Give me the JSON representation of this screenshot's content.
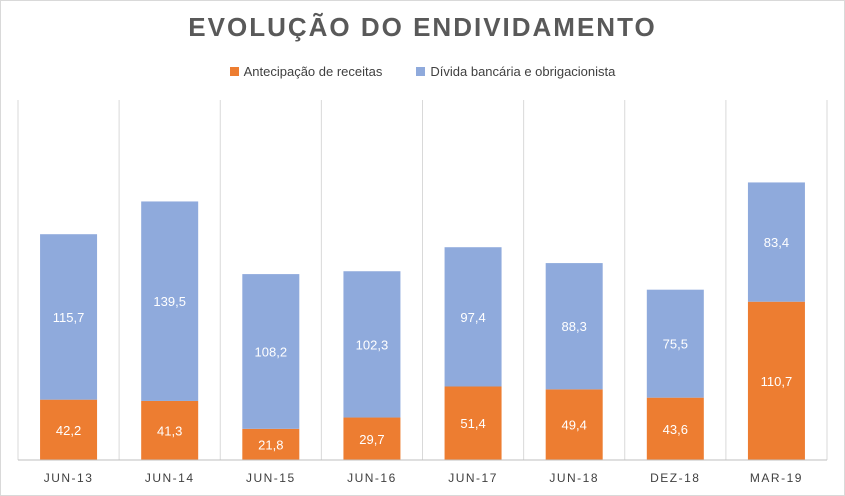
{
  "chart_data": {
    "type": "bar",
    "stacked": true,
    "title": "EVOLUÇÃO DO ENDIVIDAMENTO",
    "xlabel": "",
    "ylabel": "",
    "ylim": [
      0,
      250
    ],
    "categories": [
      "JUN-13",
      "JUN-14",
      "JUN-15",
      "JUN-16",
      "JUN-17",
      "JUN-18",
      "DEZ-18",
      "MAR-19"
    ],
    "series": [
      {
        "name": "Antecipação de receitas",
        "color": "#ED7D31",
        "values": [
          42.2,
          41.3,
          21.8,
          29.7,
          51.4,
          49.4,
          43.6,
          110.7
        ],
        "labels": [
          "42,2",
          "41,3",
          "21,8",
          "29,7",
          "51,4",
          "49,4",
          "43,6",
          "110,7"
        ]
      },
      {
        "name": "Dívida bancária e obrigacionista",
        "color": "#8FAADC",
        "values": [
          115.7,
          139.5,
          108.2,
          102.3,
          97.4,
          88.3,
          75.5,
          83.4
        ],
        "labels": [
          "115,7",
          "139,5",
          "108,2",
          "102,3",
          "97,4",
          "88,3",
          "75,5",
          "83,4"
        ]
      }
    ],
    "legend_position": "top"
  }
}
